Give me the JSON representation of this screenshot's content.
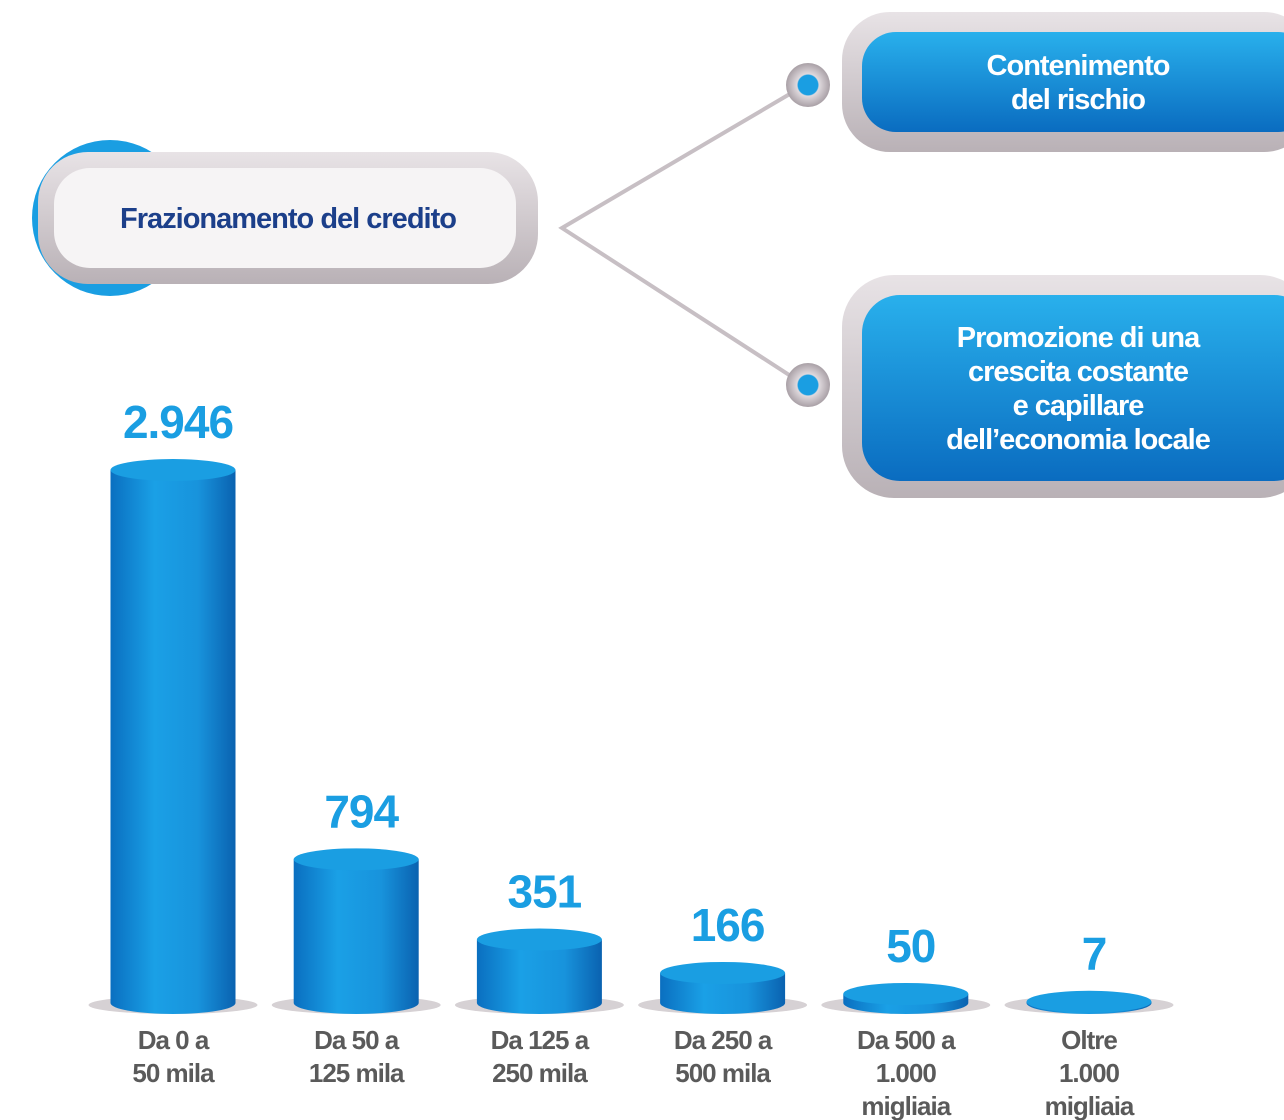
{
  "diagram": {
    "source": "Frazionamento del credito",
    "targets": [
      [
        "Contenimento",
        "del rischio"
      ],
      [
        "Promozione di una",
        "crescita costante",
        "e capillare",
        "dell’economia locale"
      ]
    ]
  },
  "chart_data": {
    "type": "bar",
    "categories": [
      [
        "Da 0 a",
        "50 mila"
      ],
      [
        "Da 50 a",
        "125 mila"
      ],
      [
        "Da 125 a",
        "250 mila"
      ],
      [
        "Da 250 a",
        "500 mila"
      ],
      [
        "Da 500 a",
        "1.000",
        "migliaia"
      ],
      [
        "Oltre",
        "1.000",
        "migliaia"
      ]
    ],
    "values": [
      2946,
      794,
      351,
      166,
      50,
      7
    ],
    "value_labels": [
      "2.946",
      "794",
      "351",
      "166",
      "50",
      "7"
    ],
    "color": "#1a9ee2"
  }
}
